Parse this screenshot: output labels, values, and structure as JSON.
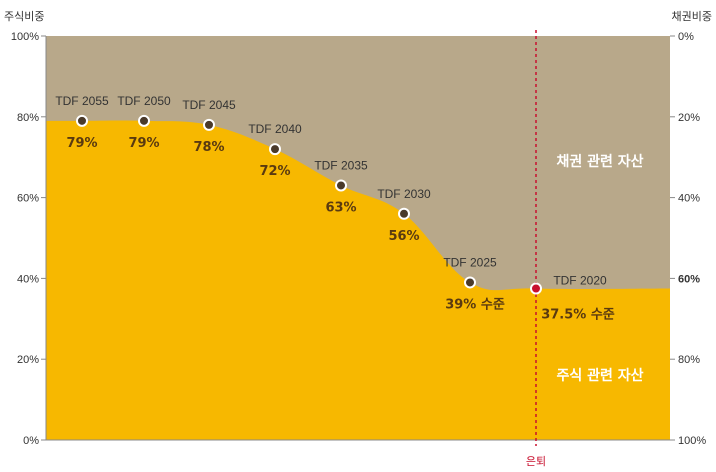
{
  "chart_data": {
    "type": "area",
    "left_axis_title": "주식비중",
    "right_axis_title": "채권비중",
    "left_ticks": [
      {
        "value": 100,
        "label": "100%"
      },
      {
        "value": 80,
        "label": "80%"
      },
      {
        "value": 60,
        "label": "60%"
      },
      {
        "value": 40,
        "label": "40%"
      },
      {
        "value": 20,
        "label": "20%"
      },
      {
        "value": 0,
        "label": "0%"
      }
    ],
    "right_ticks": [
      {
        "value": 100,
        "label": "0%",
        "bold": false
      },
      {
        "value": 80,
        "label": "20%",
        "bold": false
      },
      {
        "value": 60,
        "label": "40%",
        "bold": false
      },
      {
        "value": 40,
        "label": "60%",
        "bold": true
      },
      {
        "value": 20,
        "label": "80%",
        "bold": false
      },
      {
        "value": 0,
        "label": "100%",
        "bold": false
      }
    ],
    "ylim": [
      0,
      100
    ],
    "points": [
      {
        "fund": "TDF 2055",
        "value": 79,
        "value_label": "79%"
      },
      {
        "fund": "TDF 2050",
        "value": 79,
        "value_label": "79%"
      },
      {
        "fund": "TDF 2045",
        "value": 78,
        "value_label": "78%"
      },
      {
        "fund": "TDF 2040",
        "value": 72,
        "value_label": "72%"
      },
      {
        "fund": "TDF 2035",
        "value": 63,
        "value_label": "63%"
      },
      {
        "fund": "TDF 2030",
        "value": 56,
        "value_label": "56%"
      },
      {
        "fund": "TDF 2025",
        "value": 39,
        "value_label": "39% 수준"
      },
      {
        "fund": "TDF 2020",
        "value": 37.5,
        "value_label": "37.5% 수준"
      }
    ],
    "region_labels": {
      "bond": "채권 관련 자산",
      "equity": "주식 관련 자산"
    },
    "retirement_label": "은퇴",
    "colors": {
      "equity": "#f7b800",
      "bond": "#b8a88a",
      "marker_fill": "#4a3a2a",
      "retirement": "#c8102e"
    }
  }
}
